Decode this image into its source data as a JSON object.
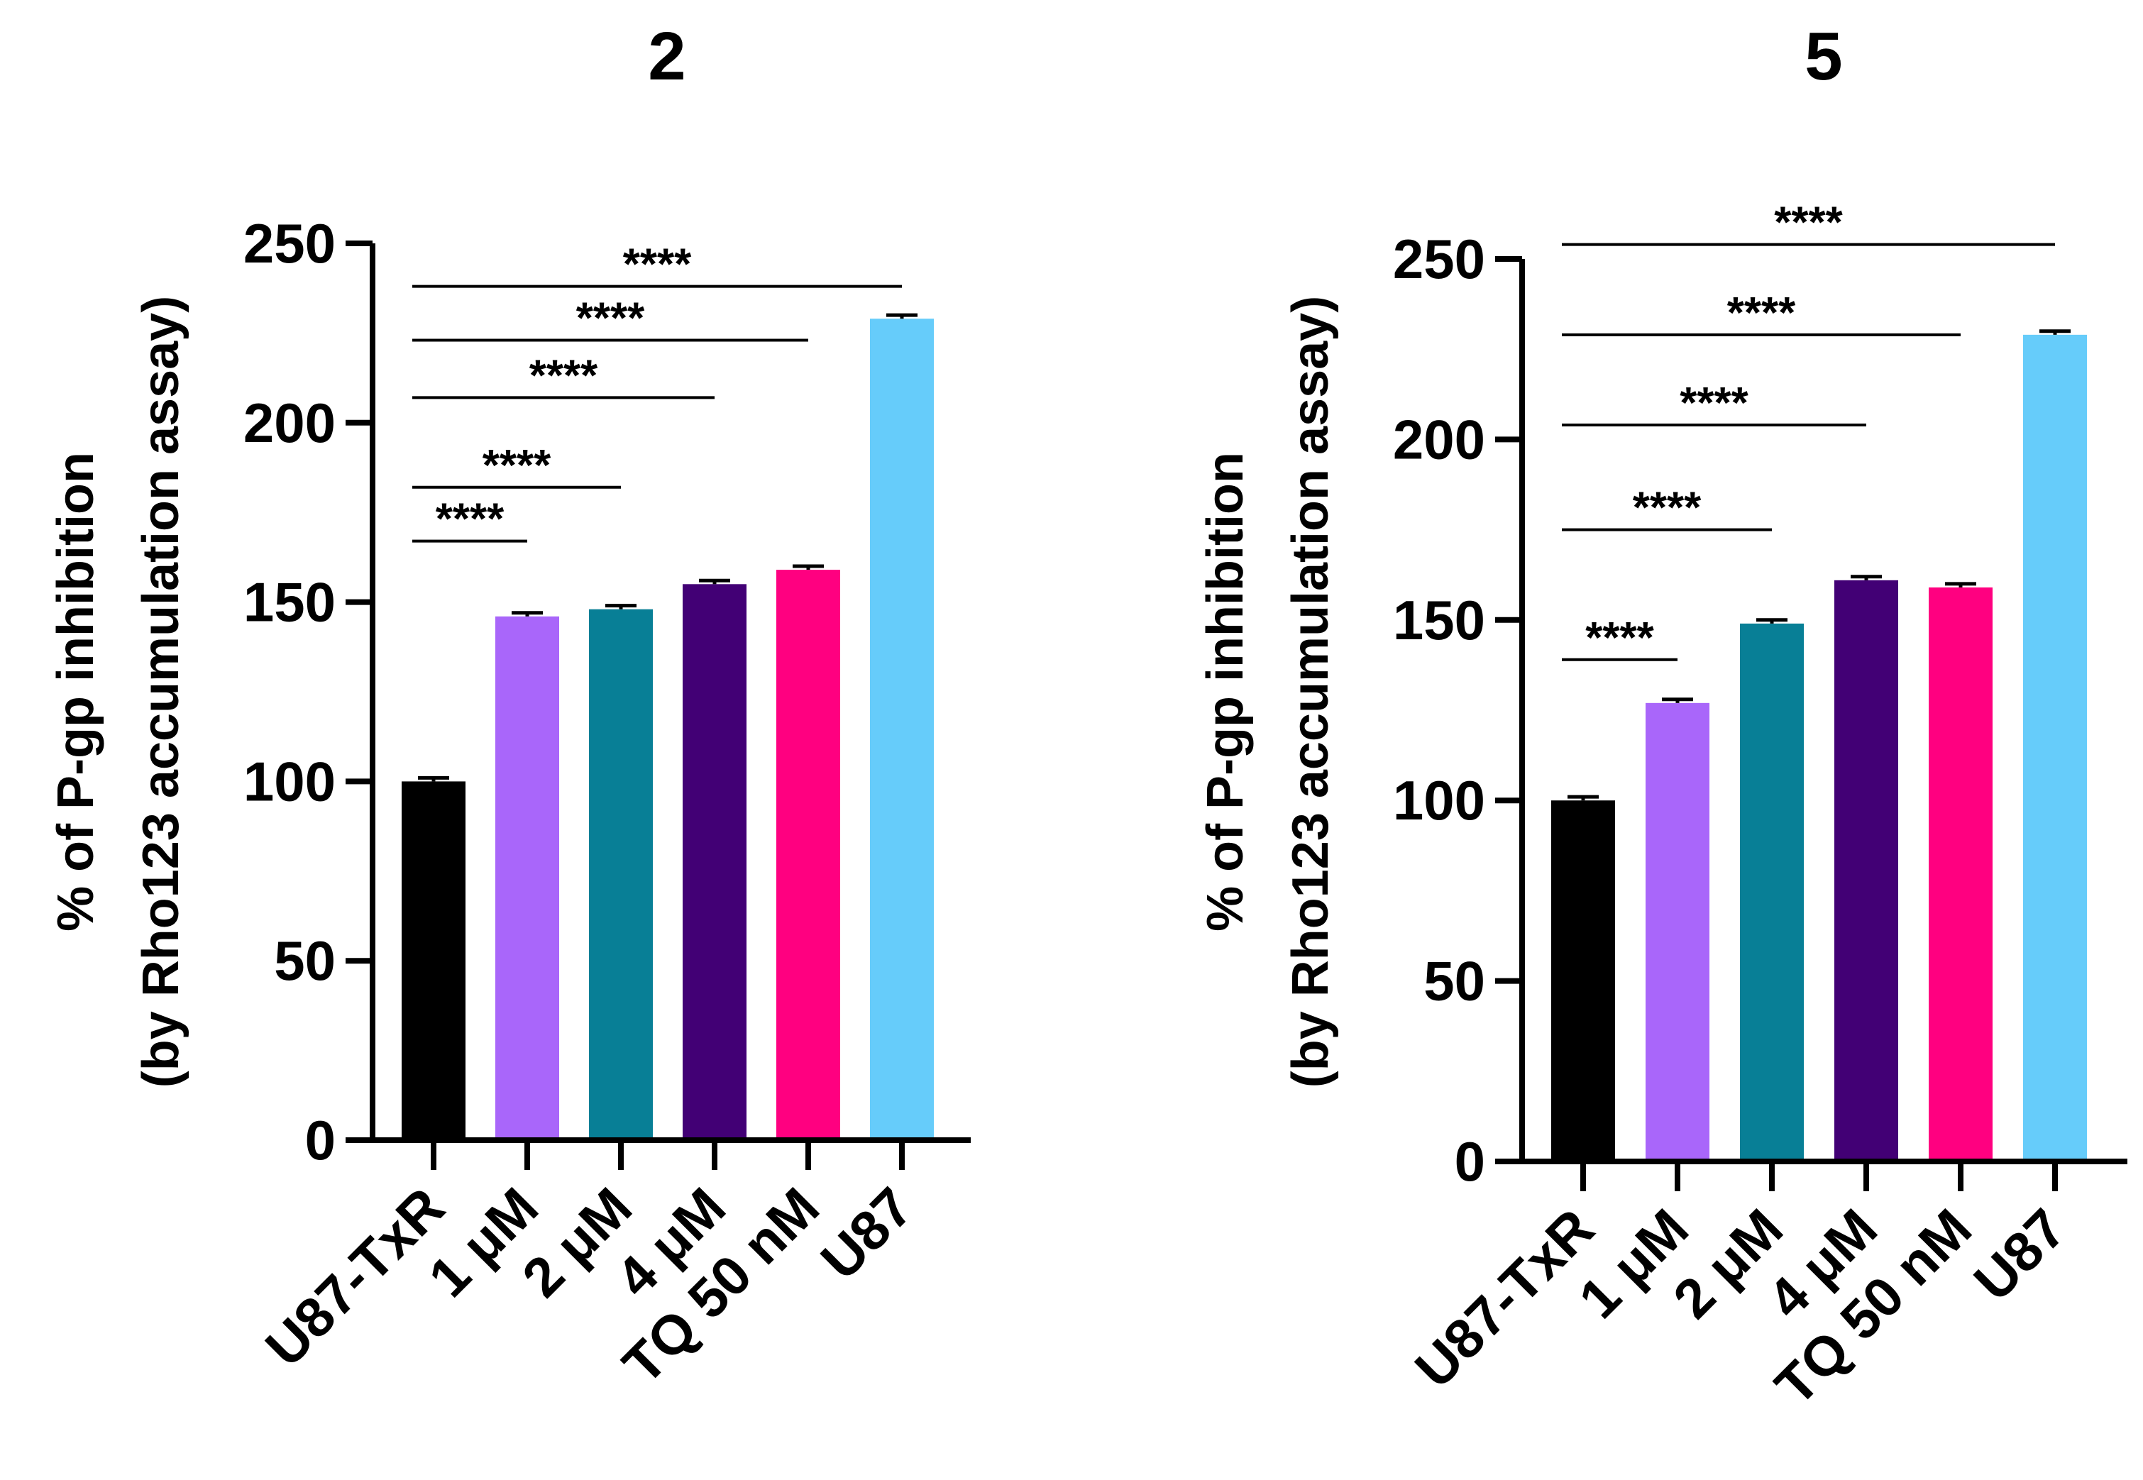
{
  "colors": {
    "axis": "#000000",
    "bars": [
      "#000000",
      "#a966fa",
      "#087f96",
      "#420075",
      "#ff0080",
      "#66ccfa"
    ]
  },
  "chart_data": [
    {
      "type": "bar",
      "title": "2",
      "ylabel_line1": "% of P-gp inhibition",
      "ylabel_line2": "(by Rho123 accumulation assay)",
      "xlabel": "",
      "categories": [
        "U87-TxR",
        "1 μM",
        "2 μM",
        "4 μM",
        "TQ 50 nM",
        "U87"
      ],
      "values": [
        100,
        146,
        148,
        155,
        159,
        229
      ],
      "errors": [
        1,
        1,
        1,
        1,
        1,
        1
      ],
      "ylim": [
        0,
        250
      ],
      "yticks": [
        "0",
        "50",
        "100",
        "150",
        "200",
        "250"
      ],
      "grid": false,
      "significance": [
        {
          "from": 0,
          "to": 1,
          "label": "****",
          "y": 167
        },
        {
          "from": 0,
          "to": 2,
          "label": "****",
          "y": 182
        },
        {
          "from": 0,
          "to": 3,
          "label": "****",
          "y": 207
        },
        {
          "from": 0,
          "to": 4,
          "label": "****",
          "y": 223
        },
        {
          "from": 0,
          "to": 5,
          "label": "****",
          "y": 238
        }
      ]
    },
    {
      "type": "bar",
      "title": "5",
      "ylabel_line1": "% of P-gp inhibition",
      "ylabel_line2": "(by Rho123 accumulation assay)",
      "xlabel": "",
      "categories": [
        "U87-TxR",
        "1 μM",
        "2 μM",
        "4 μM",
        "TQ 50 nM",
        "U87"
      ],
      "values": [
        100,
        127,
        149,
        161,
        159,
        229
      ],
      "errors": [
        1,
        1,
        1,
        1,
        1,
        1
      ],
      "ylim": [
        0,
        250
      ],
      "yticks": [
        "0",
        "50",
        "100",
        "150",
        "200",
        "250"
      ],
      "grid": false,
      "significance": [
        {
          "from": 0,
          "to": 1,
          "label": "****",
          "y": 139
        },
        {
          "from": 0,
          "to": 2,
          "label": "****",
          "y": 175
        },
        {
          "from": 0,
          "to": 3,
          "label": "****",
          "y": 204
        },
        {
          "from": 0,
          "to": 4,
          "label": "****",
          "y": 229
        },
        {
          "from": 0,
          "to": 5,
          "label": "****",
          "y": 254
        }
      ]
    }
  ]
}
